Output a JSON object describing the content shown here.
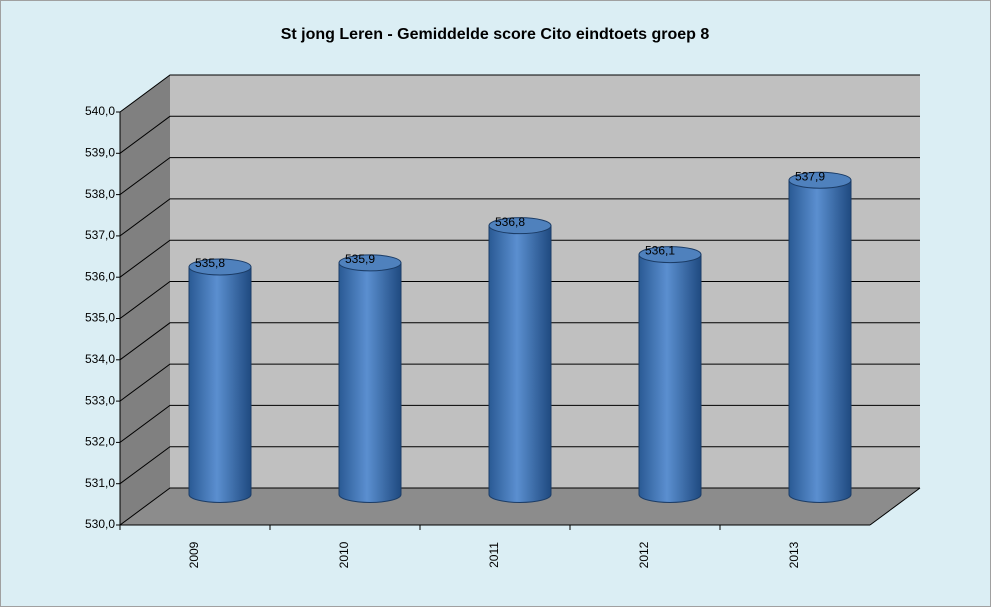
{
  "chart_data": {
    "type": "bar3d",
    "title": "St jong Leren - Gemiddelde score Cito eindtoets groep 8",
    "categories": [
      "2009",
      "2010",
      "2011",
      "2012",
      "2013"
    ],
    "values": [
      535.8,
      535.9,
      536.8,
      536.1,
      537.9
    ],
    "value_labels": [
      "535,8",
      "535,9",
      "536,8",
      "536,1",
      "537,9"
    ],
    "color": "#4f81bd",
    "ylim": [
      530,
      540
    ],
    "yticks": [
      {
        "value": 530,
        "label": "530,0"
      },
      {
        "value": 531,
        "label": "531,0"
      },
      {
        "value": 532,
        "label": "532,0"
      },
      {
        "value": 533,
        "label": "533,0"
      },
      {
        "value": 534,
        "label": "534,0"
      },
      {
        "value": 535,
        "label": "535,0"
      },
      {
        "value": 536,
        "label": "536,0"
      },
      {
        "value": 537,
        "label": "537,0"
      },
      {
        "value": 538,
        "label": "538,0"
      },
      {
        "value": 539,
        "label": "539,0"
      },
      {
        "value": 540,
        "label": "540,0"
      }
    ],
    "grid": true
  }
}
